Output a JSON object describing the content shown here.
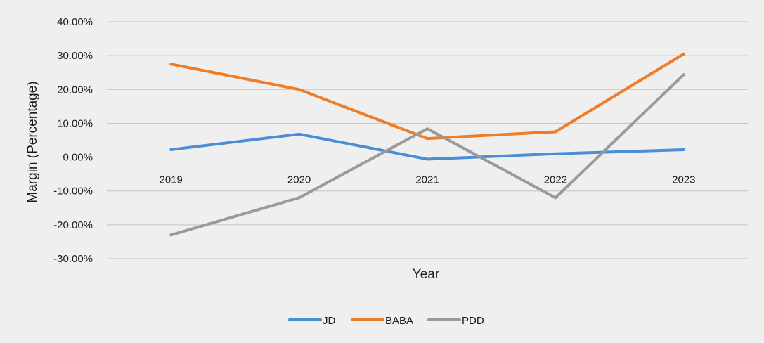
{
  "chart_data": {
    "type": "line",
    "title": "",
    "xlabel": "Year",
    "ylabel": "Margin (Percentage)",
    "ylim": [
      -30,
      40
    ],
    "ytick_step": 10,
    "ytick_labels": [
      "40.00%",
      "30.00%",
      "20.00%",
      "10.00%",
      "0.00%",
      "-10.00%",
      "-20.00%",
      "-30.00%"
    ],
    "categories": [
      "2019",
      "2020",
      "2021",
      "2022",
      "2023"
    ],
    "grid": true,
    "legend_position": "bottom-center",
    "series": [
      {
        "name": "JD",
        "color": "#4a8fd6",
        "values": [
          2.2,
          6.8,
          -0.6,
          1.0,
          2.2
        ]
      },
      {
        "name": "BABA",
        "color": "#ef7c26",
        "values": [
          27.5,
          20.0,
          5.5,
          7.5,
          30.5
        ]
      },
      {
        "name": "PDD",
        "color": "#9a9a9a",
        "values": [
          -23.0,
          -12.0,
          8.4,
          -12.0,
          24.4
        ]
      }
    ]
  }
}
